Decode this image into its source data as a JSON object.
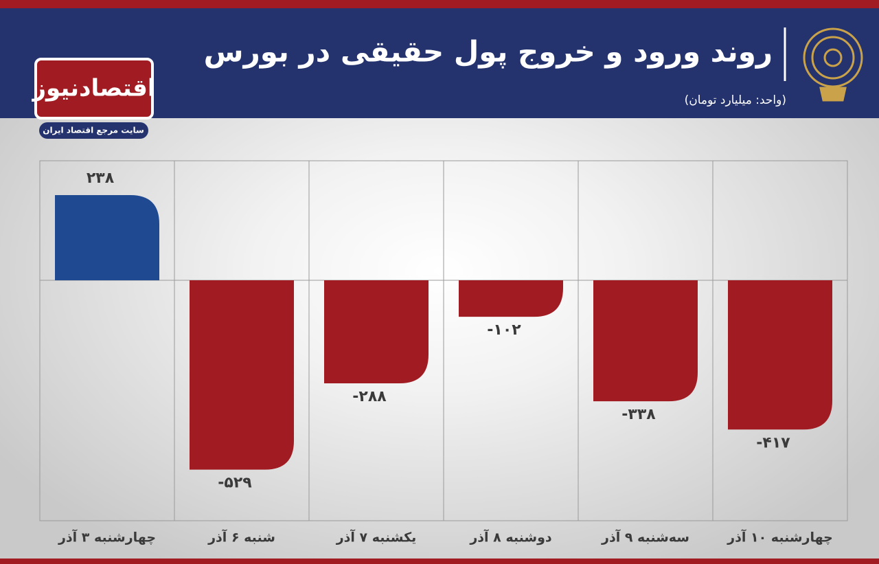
{
  "logo": {
    "name": "اقتصادنیوز",
    "tagline": "سایت مرجع اقتصاد ایران"
  },
  "chart_data": {
    "type": "bar",
    "title": "روند ورود و خروج پول حقیقی در بورس",
    "subtitle": "(واحد: میلیارد تومان)",
    "categories": [
      "چهارشنبه ۳ آذر",
      "شنبه ۶ آذر",
      "یکشنبه ۷ آذر",
      "دوشنبه ۸ آذر",
      "سه‌شنبه ۹ آذر",
      "چهارشنبه ۱۰ آذر"
    ],
    "values": [
      238,
      -529,
      -288,
      -102,
      -338,
      -417
    ],
    "value_labels": [
      "۲۳۸",
      "-۵۲۹",
      "-۲۸۸",
      "-۱۰۲",
      "-۳۳۸",
      "-۴۱۷"
    ],
    "positive_color": "#1f4a92",
    "negative_color": "#a01c22"
  }
}
